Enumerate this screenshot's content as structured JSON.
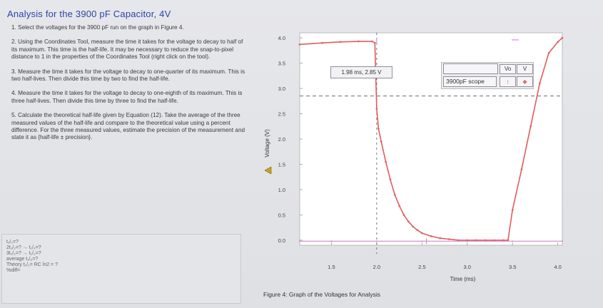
{
  "page": {
    "title": "Analysis for the 3900 pF Capacitor, 4V",
    "instructions": [
      "1. Select the voltages for the 3900 pF run on the graph in Figure 4.",
      "2. Using the Coordinates Tool, measure the time it takes for the voltage to decay to half of its maximum. This time is the half-life. It may be necessary to reduce the snap-to-pixel distance to 1 in the properties of the Coordinates Tool (right click on the tool).",
      "3. Measure the time it takes for the voltage to decay to one-quarter of its maximum. This is two half-lives. Then divide this time by two to find the half-life.",
      "4. Measure the time it takes for the voltage to decay to one-eighth of its maximum. This is three half-lives. Then divide this time by three to find the half-life.",
      "5. Calculate the theoretical half-life given by Equation (12). Take the average of the three measured values of the half-life and compare to the theoretical value using a percent difference. For the three measured values, estimate the precision of the measurement and state it as {half-life ± precision}."
    ],
    "notes": [
      "t₁/₂=?",
      "2t₁/₂=? → t₁/₂=?",
      "3t₁/₂=? → t₁/₂=?",
      "average t₁/₂=?",
      "",
      "Theory t₁/₂= RC ln2 = ?",
      "%diff="
    ],
    "caption": "Figure 4: Graph of the Voltages for Analysis",
    "coord_readout": "1.98 ms, 2.85 V",
    "legend": {
      "col1": "Vo",
      "col2": "V",
      "series_name": "3900pF scope",
      "col1_mark": "↕",
      "col2_mark": "◆"
    }
  },
  "chart_data": {
    "type": "line",
    "xlabel": "Time (ms)",
    "ylabel": "Voltage (V)",
    "xlim": [
      1.15,
      4.05
    ],
    "ylim": [
      -0.1,
      4.1
    ],
    "xticks": [
      "1.5",
      "2.0",
      "2.5",
      "3.0",
      "3.5",
      "4.0"
    ],
    "yticks": [
      "0.0",
      "0.5",
      "1.0",
      "1.5",
      "2.0",
      "2.5",
      "3.0",
      "3.5",
      "4.0"
    ],
    "grid": false,
    "series": [
      {
        "color": "#e25c5c",
        "x": [
          1.15,
          1.4,
          1.6,
          1.8,
          1.95,
          1.98,
          2.0,
          2.02,
          2.05,
          2.1,
          2.15,
          2.2,
          2.25,
          2.3,
          2.35,
          2.4,
          2.45,
          2.5,
          2.6,
          2.7,
          2.8,
          2.9,
          3.0,
          3.1,
          3.2,
          3.3,
          3.4,
          3.45,
          3.5,
          3.6,
          3.7,
          3.8,
          3.9,
          4.0,
          4.05
        ],
        "y": [
          3.87,
          3.9,
          3.92,
          3.93,
          3.93,
          3.9,
          2.6,
          2.2,
          1.95,
          1.55,
          1.2,
          0.9,
          0.68,
          0.5,
          0.37,
          0.27,
          0.2,
          0.14,
          0.08,
          0.04,
          0.02,
          0.0,
          0.0,
          0.0,
          0.0,
          0.0,
          0.0,
          0.0,
          0.6,
          1.4,
          2.25,
          3.1,
          3.7,
          3.92,
          4.0
        ]
      },
      {
        "color": "#c77cc7",
        "x": [
          1.15,
          1.5,
          2.0,
          2.5,
          3.0,
          3.5,
          4.05
        ],
        "y": [
          -0.02,
          -0.02,
          -0.02,
          -0.02,
          -0.02,
          -0.02,
          -0.02
        ]
      }
    ],
    "annotations": {
      "halfline_y": 2.85,
      "cursor_x": 2.0
    }
  }
}
